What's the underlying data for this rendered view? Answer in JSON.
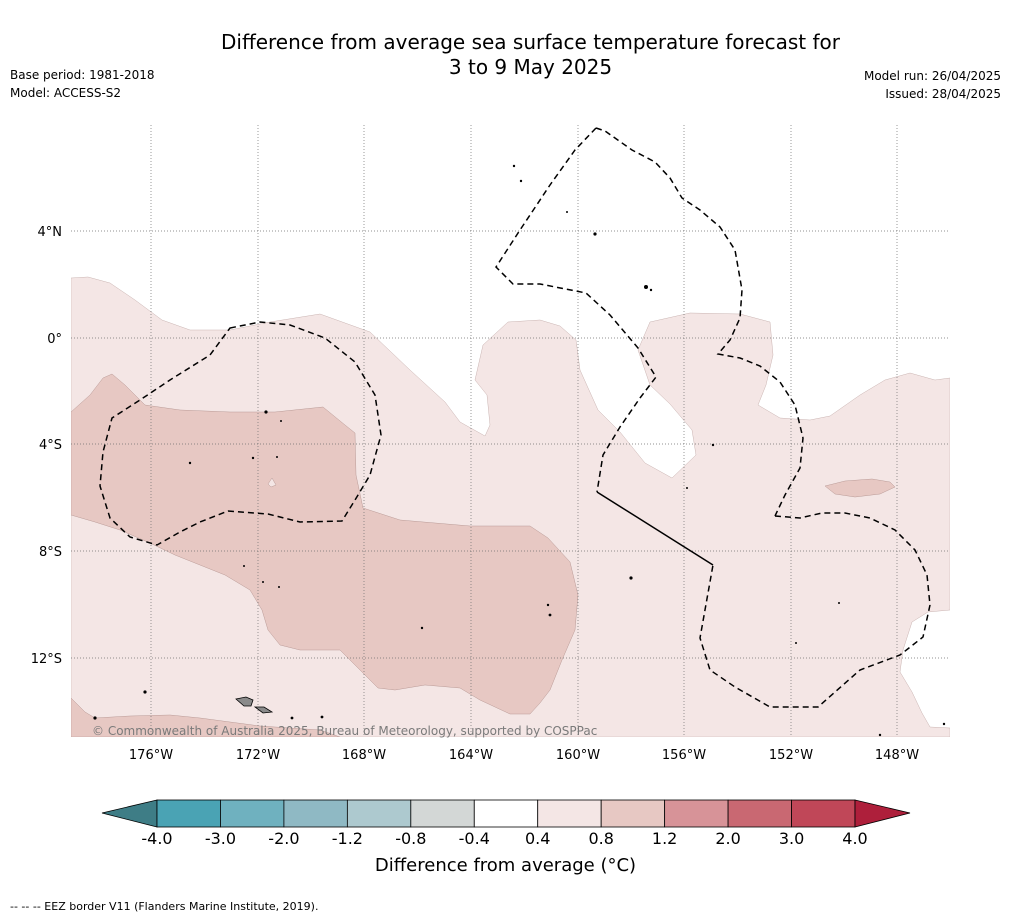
{
  "header": {
    "title_line1": "Difference from average sea surface temperature forecast for",
    "title_line2": "3 to 9 May 2025",
    "base_period": "Base period: 1981-2018",
    "model": "Model: ACCESS-S2",
    "model_run": "Model run: 26/04/2025",
    "issued": "Issued: 28/04/2025"
  },
  "map": {
    "lat_labels": [
      "4°N",
      "0°",
      "4°S",
      "8°S",
      "12°S"
    ],
    "lon_labels": [
      "176°W",
      "172°W",
      "168°W",
      "164°W",
      "160°W",
      "156°W",
      "152°W",
      "148°W"
    ],
    "copyright": "© Commonwealth of Australia 2025, Bureau of Meteorology, supported by COSPPac",
    "colors": {
      "band_0.4_0.8": "#f4e6e5",
      "band_0.8_1.2": "#e7c8c3",
      "land": "#8a8a8a",
      "eez_line": "#000000"
    }
  },
  "colorbar": {
    "ticks": [
      "-4.0",
      "-3.0",
      "-2.0",
      "-1.2",
      "-0.8",
      "-0.4",
      "0.4",
      "0.8",
      "1.2",
      "2.0",
      "3.0",
      "4.0"
    ],
    "colors": [
      "#3e7d86",
      "#4aa3b4",
      "#6fb1bf",
      "#8fb9c4",
      "#adc9cf",
      "#d3d7d6",
      "#ffffff",
      "#f4e6e5",
      "#e7c8c3",
      "#d79398",
      "#c96872",
      "#c04758",
      "#ae1f3b"
    ],
    "title": "Difference from average (°C)"
  },
  "footnote": "--  --  -- EEZ border V11 (Flanders Marine Institute, 2019)."
}
